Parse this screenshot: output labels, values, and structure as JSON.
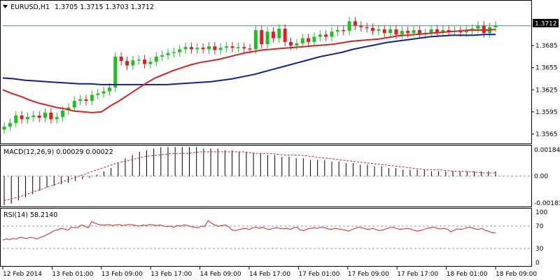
{
  "header": {
    "symbol": "EURUSD,H1",
    "ohlc": "1.3705 1.3715 1.3703 1.3712"
  },
  "price_badge": "1.3712",
  "macd_header": "MACD(12,26,9) 0.00029 0.00022",
  "rsi_header": "RSI(14) 58.2140",
  "colors": {
    "bull": "#20c020",
    "bear": "#e02020",
    "ma_fast": "#e02020",
    "ma_slow": "#1020a0",
    "rsi": "#e02020",
    "grid": "#999999",
    "last_price": "#4a8a8a"
  },
  "chart_data": [
    {
      "type": "candlestick",
      "title": "EURUSD,H1",
      "ylim": [
        1.3553,
        1.3745
      ],
      "y_ticks": [
        "1.3712",
        "1.3685",
        "1.3655",
        "1.3625",
        "1.3595",
        "1.3565"
      ],
      "x_ticks": [
        "12 Feb 2014",
        "13 Feb 01:00",
        "13 Feb 09:00",
        "13 Feb 17:00",
        "14 Feb 09:00",
        "14 Feb 17:00",
        "17 Feb 01:00",
        "17 Feb 09:00",
        "17 Feb 17:00",
        "18 Feb 01:00",
        "18 Feb 09:00"
      ],
      "last_price": 1.3712,
      "closes": [
        1.3575,
        1.358,
        1.359,
        1.3585,
        1.3588,
        1.359,
        1.3587,
        1.3594,
        1.3585,
        1.3588,
        1.3597,
        1.3601,
        1.361,
        1.3612,
        1.361,
        1.3618,
        1.362,
        1.3623,
        1.3628,
        1.367,
        1.3664,
        1.3658,
        1.3665,
        1.3666,
        1.366,
        1.3663,
        1.367,
        1.3672,
        1.3675,
        1.3676,
        1.368,
        1.3683,
        1.368,
        1.3682,
        1.368,
        1.3684,
        1.3679,
        1.3682,
        1.3684,
        1.3682,
        1.3683,
        1.3681,
        1.368,
        1.3706,
        1.3687,
        1.3704,
        1.3695,
        1.3708,
        1.369,
        1.3685,
        1.3688,
        1.3695,
        1.369,
        1.3697,
        1.37,
        1.3697,
        1.3704,
        1.3706,
        1.3705,
        1.3718,
        1.3712,
        1.371,
        1.3709,
        1.3705,
        1.3707,
        1.3702,
        1.3707,
        1.37,
        1.3705,
        1.3702,
        1.3706,
        1.37,
        1.3702,
        1.3707,
        1.3703,
        1.3706,
        1.3705,
        1.3705,
        1.3703,
        1.3706,
        1.3708,
        1.3712,
        1.3702,
        1.371,
        1.3712
      ],
      "ma_fast": [
        1.3625,
        1.362,
        1.3616,
        1.3611,
        1.3607,
        1.3604,
        1.3601,
        1.3599,
        1.3596,
        1.3595,
        1.3594,
        1.3595,
        1.3603,
        1.361,
        1.3618,
        1.3626,
        1.3634,
        1.3641,
        1.3646,
        1.3651,
        1.3655,
        1.3659,
        1.3662,
        1.3664,
        1.3666,
        1.3669,
        1.3672,
        1.3675,
        1.3677,
        1.3679,
        1.368,
        1.3681,
        1.3682,
        1.3683,
        1.3684,
        1.3685,
        1.3686,
        1.3687,
        1.3689,
        1.3691,
        1.3692,
        1.3693,
        1.3694,
        1.3696,
        1.3698,
        1.3699,
        1.37,
        1.3701,
        1.3702,
        1.3703,
        1.3704,
        1.3705,
        1.3706,
        1.3706,
        1.3706,
        1.3707
      ],
      "ma_slow": [
        1.3641,
        1.364,
        1.3638,
        1.3637,
        1.3636,
        1.3635,
        1.3634,
        1.3633,
        1.3633,
        1.3632,
        1.3632,
        1.3632,
        1.3632,
        1.3632,
        1.3632,
        1.3632,
        1.3633,
        1.3634,
        1.3635,
        1.3636,
        1.3638,
        1.364,
        1.3643,
        1.3646,
        1.365,
        1.3654,
        1.3658,
        1.3662,
        1.3666,
        1.367,
        1.3673,
        1.3676,
        1.368,
        1.3683,
        1.3686,
        1.3689,
        1.3691,
        1.3693,
        1.3695,
        1.3697,
        1.3698,
        1.3699,
        1.3699,
        1.3699,
        1.37,
        1.37
      ]
    },
    {
      "type": "bar",
      "title": "MACD(12,26,9) 0.00029 0.00022",
      "ylim": [
        -0.00183,
        0.00184
      ],
      "y_ticks": [
        "0.00184",
        "0.00",
        "-0.00183"
      ],
      "values": [
        -0.0018,
        -0.0017,
        -0.0015,
        -0.0013,
        -0.0011,
        -0.0009,
        -0.0007,
        -0.0006,
        -0.0005,
        -0.0004,
        -0.0003,
        -0.0002,
        -0.0001,
        0.0001,
        0.0003,
        0.0005,
        0.0008,
        0.0011,
        0.0013,
        0.0015,
        0.0016,
        0.0017,
        0.0018,
        0.0018,
        0.0018,
        0.0018,
        0.0018,
        0.0018,
        0.0017,
        0.0017,
        0.0017,
        0.0016,
        0.0016,
        0.0015,
        0.0015,
        0.0014,
        0.0014,
        0.0013,
        0.0013,
        0.0012,
        0.0012,
        0.0011,
        0.0011,
        0.001,
        0.001,
        0.001,
        0.0009,
        0.0009,
        0.0008,
        0.0008,
        0.0007,
        0.0007,
        0.0006,
        0.0006,
        0.0005,
        0.0005,
        0.0004,
        0.0004,
        0.0004,
        0.0004,
        0.0003,
        0.0003,
        0.0003,
        0.0003,
        0.0003,
        0.0003,
        0.0003,
        0.0003,
        0.0003,
        0.0003
      ],
      "signal": [
        -0.0015,
        -0.0013,
        -0.001,
        -0.0007,
        -0.0004,
        -0.0001,
        0.0002,
        0.0005,
        0.0008,
        0.001,
        0.0012,
        0.0013,
        0.0014,
        0.0014,
        0.0015,
        0.0015,
        0.0015,
        0.0015,
        0.0014,
        0.0014,
        0.0013,
        0.0013,
        0.0012,
        0.0011,
        0.001,
        0.0009,
        0.0008,
        0.0007,
        0.0006,
        0.0005,
        0.0004,
        0.0004,
        0.0003,
        0.0003,
        0.0002,
        0.0002
      ]
    },
    {
      "type": "line",
      "title": "RSI(14) 58.2140",
      "ylim": [
        0,
        100
      ],
      "y_ticks": [
        "100",
        "70",
        "30",
        "0"
      ],
      "levels": [
        70,
        30
      ],
      "values": [
        45,
        47,
        46,
        48,
        47,
        50,
        49,
        48,
        50,
        49,
        47,
        50,
        52,
        55,
        58,
        62,
        63,
        66,
        65,
        63,
        68,
        67,
        68,
        72,
        70,
        67,
        78,
        75,
        73,
        72,
        72,
        73,
        71,
        72,
        73,
        71,
        72,
        73,
        72,
        71,
        70,
        72,
        71,
        73,
        72,
        71,
        72,
        70,
        69,
        70,
        68,
        71,
        70,
        72,
        71,
        69,
        68,
        67,
        70,
        69,
        80,
        75,
        72,
        70,
        71,
        72,
        69,
        63,
        62,
        64,
        65,
        66,
        64,
        67,
        68,
        66,
        68,
        65,
        64,
        66,
        67,
        66,
        65,
        66,
        64,
        67,
        68,
        63,
        62,
        65,
        66,
        67,
        66,
        68,
        67,
        65,
        64,
        66,
        65,
        64,
        63,
        61,
        64,
        66,
        68,
        67,
        65,
        64,
        66,
        64,
        62,
        63,
        65,
        67,
        68,
        66,
        64,
        65,
        66,
        65,
        63,
        61,
        62,
        64,
        66,
        67,
        68,
        66,
        65,
        66,
        64,
        60,
        63,
        65,
        64,
        66,
        68,
        67,
        65,
        64,
        66,
        62,
        61,
        58,
        58
      ]
    }
  ]
}
